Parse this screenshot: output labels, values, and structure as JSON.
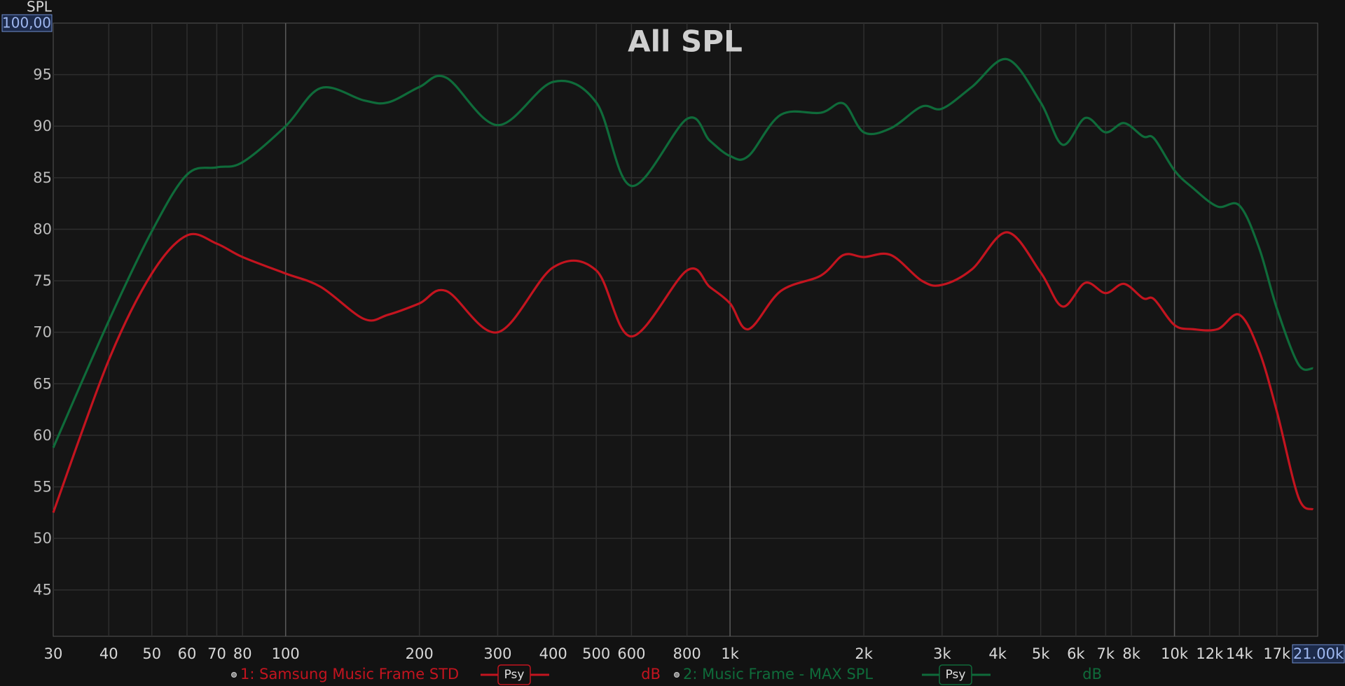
{
  "chart_data": {
    "type": "line",
    "title": "All SPL",
    "y_label": "SPL",
    "log_x": true,
    "grid": true,
    "xlim": [
      30,
      21000
    ],
    "ylim": [
      40.5,
      100
    ],
    "xticks": [
      30,
      40,
      50,
      60,
      70,
      80,
      100,
      200,
      300,
      400,
      500,
      600,
      800,
      {
        "value": 1000,
        "label": "1k"
      },
      {
        "value": 2000,
        "label": "2k"
      },
      {
        "value": 3000,
        "label": "3k"
      },
      {
        "value": 4000,
        "label": "4k"
      },
      {
        "value": 5000,
        "label": "5k"
      },
      {
        "value": 6000,
        "label": "6k"
      },
      {
        "value": 7000,
        "label": "7k"
      },
      {
        "value": 8000,
        "label": "8k"
      },
      {
        "value": 10000,
        "label": "10k"
      },
      {
        "value": 12000,
        "label": "12k"
      },
      {
        "value": 14000,
        "label": "14k"
      },
      {
        "value": 17000,
        "label": "17k"
      },
      {
        "value": 21000,
        "label": "21.00k"
      }
    ],
    "yticks": [
      45,
      50,
      55,
      60,
      65,
      70,
      75,
      80,
      85,
      90,
      95,
      {
        "value": 100,
        "label": "100,00"
      }
    ],
    "x": [
      30,
      40,
      50,
      60,
      70,
      80,
      100,
      120,
      150,
      170,
      200,
      230,
      300,
      400,
      500,
      600,
      800,
      900,
      1000,
      1100,
      1300,
      1600,
      1800,
      2000,
      2300,
      2700,
      3000,
      3500,
      4200,
      5000,
      5600,
      6300,
      7000,
      7700,
      8500,
      9000,
      10000,
      11000,
      12500,
      14000,
      15500,
      17000,
      19000,
      20500
    ],
    "series": [
      {
        "name": "1: Samsung Music Frame STD",
        "color": "#c3141f",
        "smoothing": "Psy",
        "unit": "dB",
        "values": [
          52.5,
          67.3,
          75.7,
          79.4,
          78.6,
          77.3,
          75.7,
          74.4,
          71.3,
          71.7,
          72.8,
          74,
          70,
          76.3,
          76,
          69.6,
          76,
          74.4,
          72.8,
          70.3,
          74,
          75.5,
          77.5,
          77.3,
          77.5,
          75,
          74.6,
          76.1,
          79.7,
          75.8,
          72.5,
          74.8,
          73.8,
          74.7,
          73.3,
          73.2,
          70.7,
          70.3,
          70.3,
          71.7,
          68.2,
          62.3,
          54,
          52.8
        ]
      },
      {
        "name": "2: Music Frame - MAX SPL",
        "color": "#0f6b3a",
        "smoothing": "Psy",
        "unit": "dB",
        "values": [
          58.8,
          71.1,
          79.8,
          85.3,
          86,
          86.5,
          90,
          93.7,
          92.5,
          92.3,
          93.8,
          94.7,
          90.1,
          94.3,
          92.3,
          84.2,
          90.7,
          88.6,
          87.1,
          87.1,
          91.1,
          91.3,
          92.2,
          89.4,
          89.8,
          91.9,
          91.7,
          93.8,
          96.5,
          92.3,
          88.2,
          90.8,
          89.4,
          90.3,
          89,
          88.8,
          85.7,
          84,
          82.2,
          82.3,
          78.2,
          72.3,
          66.9,
          66.5
        ]
      }
    ]
  }
}
